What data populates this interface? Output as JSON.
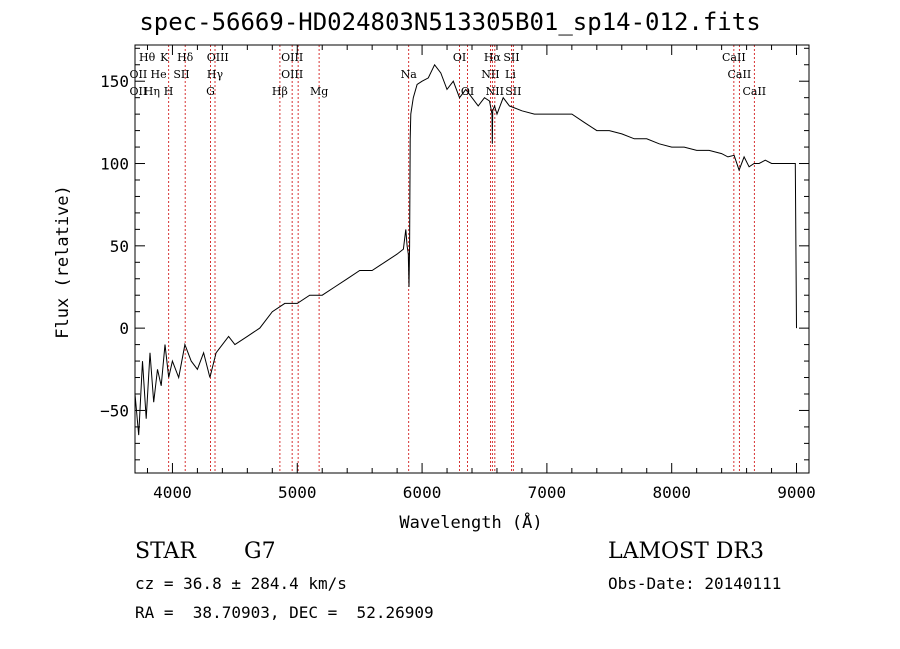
{
  "title": "spec-56669-HD024803N513305B01_sp14-012.fits",
  "info": {
    "object_class": "STAR",
    "subclass": "G7",
    "survey": "LAMOST DR3",
    "cz": "cz = 36.8 ± 284.4 km/s",
    "obs_date": "Obs-Date: 20140111",
    "coords": "RA =  38.70903, DEC =  52.26909"
  },
  "colors": {
    "spectrum": "#000000",
    "line_marker": "#cc0000",
    "axis": "#000000"
  },
  "chart_data": {
    "type": "line",
    "title": "spec-56669-HD024803N513305B01_sp14-012.fits",
    "xlabel": "Wavelength (Å)",
    "ylabel": "Flux (relative)",
    "xlim": [
      3700,
      9100
    ],
    "ylim": [
      -88,
      172
    ],
    "xticks": [
      4000,
      5000,
      6000,
      7000,
      8000,
      9000
    ],
    "yticks": [
      -50,
      0,
      50,
      100,
      150
    ],
    "grid": false,
    "series": [
      {
        "name": "spectrum",
        "x": [
          3700,
          3730,
          3760,
          3790,
          3820,
          3850,
          3880,
          3910,
          3940,
          3970,
          4000,
          4050,
          4100,
          4150,
          4200,
          4250,
          4300,
          4350,
          4400,
          4450,
          4500,
          4600,
          4700,
          4800,
          4900,
          5000,
          5100,
          5200,
          5300,
          5400,
          5500,
          5600,
          5700,
          5800,
          5850,
          5870,
          5880,
          5890,
          5895,
          5900,
          5905,
          5910,
          5930,
          5960,
          6000,
          6050,
          6100,
          6150,
          6200,
          6250,
          6300,
          6350,
          6400,
          6450,
          6500,
          6540,
          6560,
          6563,
          6566,
          6580,
          6600,
          6650,
          6700,
          6800,
          6900,
          7000,
          7100,
          7200,
          7300,
          7400,
          7500,
          7600,
          7700,
          7800,
          7900,
          8000,
          8100,
          8200,
          8300,
          8400,
          8450,
          8500,
          8540,
          8580,
          8620,
          8660,
          8700,
          8750,
          8800,
          8850,
          8900,
          8950,
          8980,
          8990,
          8995,
          9000
        ],
        "y": [
          -40,
          -65,
          -20,
          -55,
          -15,
          -45,
          -25,
          -35,
          -10,
          -30,
          -20,
          -30,
          -10,
          -20,
          -25,
          -15,
          -30,
          -15,
          -10,
          -5,
          -10,
          -5,
          0,
          10,
          15,
          15,
          20,
          20,
          25,
          30,
          35,
          35,
          40,
          45,
          48,
          60,
          50,
          45,
          25,
          50,
          115,
          130,
          140,
          148,
          150,
          152,
          160,
          155,
          145,
          150,
          140,
          145,
          140,
          135,
          140,
          138,
          130,
          112,
          132,
          135,
          130,
          140,
          135,
          132,
          130,
          130,
          130,
          130,
          125,
          120,
          120,
          118,
          115,
          115,
          112,
          110,
          110,
          108,
          108,
          106,
          104,
          105,
          96,
          104,
          98,
          100,
          100,
          102,
          100,
          100,
          100,
          100,
          100,
          100,
          50,
          0
        ]
      }
    ],
    "lines": [
      {
        "name": "Hε",
        "wave": 3970
      },
      {
        "name": "Hδ",
        "wave": 4102
      },
      {
        "name": "Hγ",
        "wave": 4341
      },
      {
        "name": "G",
        "wave": 4305
      },
      {
        "name": "Hβ",
        "wave": 4861
      },
      {
        "name": "OIII",
        "wave": 4959
      },
      {
        "name": "OIII",
        "wave": 5007
      },
      {
        "name": "Mg",
        "wave": 5175
      },
      {
        "name": "Na",
        "wave": 5893
      },
      {
        "name": "OI",
        "wave": 6300
      },
      {
        "name": "OI",
        "wave": 6364
      },
      {
        "name": "NII",
        "wave": 6548
      },
      {
        "name": "Hα",
        "wave": 6563
      },
      {
        "name": "NII",
        "wave": 6583
      },
      {
        "name": "SII",
        "wave": 6716
      },
      {
        "name": "SII",
        "wave": 6731
      },
      {
        "name": "CaII",
        "wave": 8498
      },
      {
        "name": "CaII",
        "wave": 8542
      },
      {
        "name": "CaII",
        "wave": 8662
      }
    ],
    "annotations": [
      {
        "text": "Hθ",
        "wave": 3797,
        "row": 0
      },
      {
        "text": "K",
        "wave": 3934,
        "row": 0
      },
      {
        "text": "Hδ",
        "wave": 4102,
        "row": 0
      },
      {
        "text": "OIII",
        "wave": 4363,
        "row": 0
      },
      {
        "text": "OIII",
        "wave": 4959,
        "row": 0
      },
      {
        "text": "OI",
        "wave": 6300,
        "row": 0
      },
      {
        "text": "Hα",
        "wave": 6563,
        "row": 0
      },
      {
        "text": "SII",
        "wave": 6716,
        "row": 0
      },
      {
        "text": "CaII",
        "wave": 8498,
        "row": 0
      },
      {
        "text": "OII",
        "wave": 3727,
        "row": 1
      },
      {
        "text": "He",
        "wave": 3889,
        "row": 1
      },
      {
        "text": "SII",
        "wave": 4072,
        "row": 1
      },
      {
        "text": "Hγ",
        "wave": 4341,
        "row": 1
      },
      {
        "text": "OIII",
        "wave": 4959,
        "row": 1
      },
      {
        "text": "Na",
        "wave": 5893,
        "row": 1
      },
      {
        "text": "NII",
        "wave": 6548,
        "row": 1
      },
      {
        "text": "Li",
        "wave": 6708,
        "row": 1
      },
      {
        "text": "CaII",
        "wave": 8542,
        "row": 1
      },
      {
        "text": "OII",
        "wave": 3727,
        "row": 2
      },
      {
        "text": "Hη",
        "wave": 3835,
        "row": 2
      },
      {
        "text": "H",
        "wave": 3969,
        "row": 2
      },
      {
        "text": "G",
        "wave": 4305,
        "row": 2
      },
      {
        "text": "Hβ",
        "wave": 4861,
        "row": 2
      },
      {
        "text": "Mg",
        "wave": 5175,
        "row": 2
      },
      {
        "text": "OI",
        "wave": 6364,
        "row": 2
      },
      {
        "text": "NII",
        "wave": 6583,
        "row": 2
      },
      {
        "text": "SII",
        "wave": 6731,
        "row": 2
      },
      {
        "text": "CaII",
        "wave": 8662,
        "row": 2
      }
    ]
  }
}
